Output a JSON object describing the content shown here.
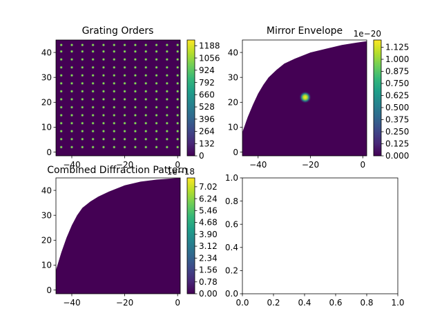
{
  "chart_data": [
    {
      "type": "heatmap",
      "title": "Grating Orders",
      "xlim": [
        -46,
        1
      ],
      "ylim": [
        -1.5,
        45
      ],
      "xticks": [
        -40,
        -20,
        0
      ],
      "xtick_labels": [
        "−40",
        "−20",
        "0"
      ],
      "yticks": [
        0,
        10,
        20,
        30,
        40
      ],
      "ytick_labels": [
        "0",
        "10",
        "20",
        "30",
        "40"
      ],
      "peak_columns_x": [
        -44,
        -40,
        -36,
        -32,
        -28,
        -24,
        -20,
        -16,
        -12,
        -8,
        -4,
        0
      ],
      "peak_rows_y": [
        2,
        5.2,
        8.4,
        11.6,
        14.8,
        18,
        21.2,
        24.4,
        27.6,
        30.8,
        34,
        37.2,
        40.4,
        43
      ],
      "background": "#440154",
      "peak_color": "#5ec962",
      "colorbar": {
        "range": [
          0,
          1250
        ],
        "ticks": [
          0,
          132,
          264,
          396,
          528,
          660,
          792,
          924,
          1056,
          1188
        ],
        "labels": [
          "0",
          "132",
          "264",
          "396",
          "528",
          "660",
          "792",
          "924",
          "1056",
          "1188"
        ],
        "offset_text": ""
      }
    },
    {
      "type": "heatmap",
      "title": "Mirror Envelope",
      "xlim": [
        -46,
        1.5
      ],
      "ylim": [
        -1.5,
        45
      ],
      "xticks": [
        -40,
        -20,
        0
      ],
      "xtick_labels": [
        "−40",
        "−20",
        "0"
      ],
      "yticks": [
        0,
        10,
        20,
        30,
        40
      ],
      "ytick_labels": [
        "0",
        "10",
        "20",
        "30",
        "40"
      ],
      "boundary": [
        [
          -46,
          8
        ],
        [
          -44,
          14
        ],
        [
          -42,
          19
        ],
        [
          -40,
          23.5
        ],
        [
          -38,
          27
        ],
        [
          -36,
          30
        ],
        [
          -33,
          33
        ],
        [
          -30,
          35.5
        ],
        [
          -26,
          37.5
        ],
        [
          -20,
          40
        ],
        [
          -14,
          41.5
        ],
        [
          -8,
          43
        ],
        [
          -2,
          44
        ],
        [
          1.5,
          44.5
        ]
      ],
      "hotspot": {
        "x": -22,
        "y": 22,
        "max_value": 1.2e-20
      },
      "colorbar": {
        "range": [
          0,
          1.2
        ],
        "ticks": [
          0,
          0.125,
          0.25,
          0.375,
          0.5,
          0.625,
          0.75,
          0.875,
          1.0,
          1.125
        ],
        "labels": [
          "0.000",
          "0.125",
          "0.250",
          "0.375",
          "0.500",
          "0.625",
          "0.750",
          "0.875",
          "1.000",
          "1.125"
        ],
        "offset_text": "1e−20"
      }
    },
    {
      "type": "heatmap",
      "title": "Combined Diffraction Pattern",
      "xlim": [
        -46,
        1
      ],
      "ylim": [
        -1.5,
        45
      ],
      "xticks": [
        -40,
        -20,
        0
      ],
      "xtick_labels": [
        "−40",
        "−20",
        "0"
      ],
      "yticks": [
        0,
        10,
        20,
        30,
        40
      ],
      "ytick_labels": [
        "0",
        "10",
        "20",
        "30",
        "40"
      ],
      "boundary": [
        [
          -46,
          8
        ],
        [
          -44,
          15
        ],
        [
          -42,
          21
        ],
        [
          -40,
          26
        ],
        [
          -38,
          30
        ],
        [
          -36,
          33
        ],
        [
          -33,
          35.5
        ],
        [
          -30,
          37.5
        ],
        [
          -26,
          39.5
        ],
        [
          -20,
          42
        ],
        [
          -14,
          43.5
        ],
        [
          -8,
          44.3
        ],
        [
          -2,
          44.8
        ],
        [
          1,
          45
        ]
      ],
      "colorbar": {
        "range": [
          0,
          7.6
        ],
        "ticks": [
          0,
          0.78,
          1.56,
          2.34,
          3.12,
          3.9,
          4.68,
          5.46,
          6.24,
          7.02
        ],
        "labels": [
          "0.00",
          "0.78",
          "1.56",
          "2.34",
          "3.12",
          "3.90",
          "4.68",
          "5.46",
          "6.24",
          "7.02"
        ],
        "offset_text": "1e−18"
      }
    },
    {
      "type": "line",
      "title": "",
      "xlim": [
        0,
        1
      ],
      "ylim": [
        0,
        1
      ],
      "xticks": [
        0,
        0.2,
        0.4,
        0.6,
        0.8,
        1.0
      ],
      "xtick_labels": [
        "0.0",
        "0.2",
        "0.4",
        "0.6",
        "0.8",
        "1.0"
      ],
      "yticks": [
        0,
        0.2,
        0.4,
        0.6,
        0.8,
        1.0
      ],
      "ytick_labels": [
        "0.0",
        "0.2",
        "0.4",
        "0.6",
        "0.8",
        "1.0"
      ],
      "series": []
    }
  ],
  "colors": {
    "viridis_dark": "#440154",
    "viridis_stops": [
      "#440154",
      "#482878",
      "#3e4989",
      "#31688e",
      "#26828e",
      "#1f9e89",
      "#35b779",
      "#6ece58",
      "#b5de2b",
      "#fde725"
    ]
  }
}
